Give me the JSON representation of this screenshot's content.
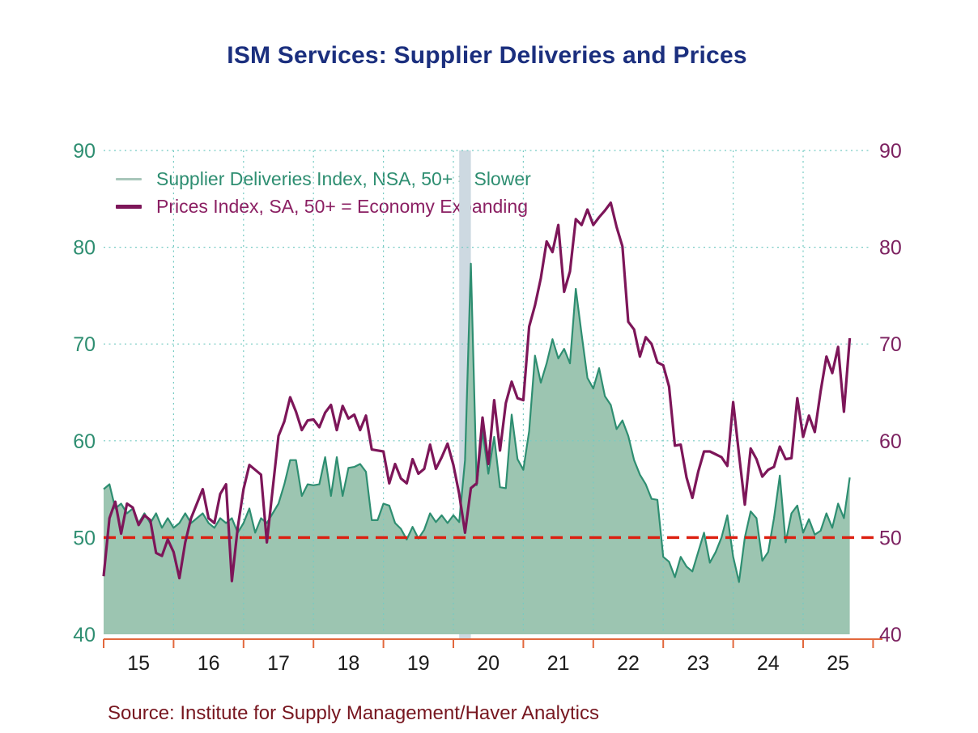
{
  "title": "ISM Services: Supplier Deliveries and Prices",
  "source": "Source:  Institute for Supply Management/Haver Analytics",
  "legend": {
    "items": [
      {
        "label": "Supplier Deliveries Index, NSA, 50+ = Slower",
        "color": "#a8c6ba",
        "text_color": "#2e8e71"
      },
      {
        "label": "Prices Index, SA, 50+ = Economy Expanding",
        "color": "#7d1659",
        "text_color": "#8b2063"
      }
    ]
  },
  "colors": {
    "title": "#1b2f7e",
    "area_fill": "#9cc5b1",
    "area_stroke": "#2e8e71",
    "prices_line": "#7d1659",
    "reference_line": "#dc1f10",
    "gridline": "#76cbc3",
    "recession_band": "#cdd9e1",
    "x_axis": "#e2683c",
    "x_tick_label": "#1c1c1c",
    "y_label_left": "#2e8e71",
    "y_label_right": "#7c2160",
    "source_text": "#77161f"
  },
  "chart_data": {
    "type": "area+line",
    "frequency": "monthly",
    "x_start": "2015-01",
    "x_end": "2025-09",
    "ylim": [
      40,
      90
    ],
    "y_ticks": [
      40,
      50,
      60,
      70,
      80,
      90
    ],
    "x_tick_labels": [
      "15",
      "16",
      "17",
      "18",
      "19",
      "20",
      "21",
      "22",
      "23",
      "24",
      "25"
    ],
    "grid": "dotted",
    "legend_position": "top-left-inside",
    "reference_line": {
      "value": 50,
      "style": "dashed",
      "color": "#dc1f10"
    },
    "recession_band": {
      "from": "2020-02",
      "to": "2020-04"
    },
    "series": [
      {
        "name": "Supplier Deliveries Index, NSA, 50+ = Slower",
        "type": "area",
        "axis": "left",
        "values": [
          55.0,
          55.5,
          53.0,
          53.5,
          52.5,
          53.0,
          51.5,
          52.5,
          51.5,
          52.5,
          51.0,
          52.0,
          51.0,
          51.5,
          52.5,
          51.5,
          52.0,
          52.5,
          51.5,
          51.0,
          52.0,
          51.5,
          52.0,
          50.5,
          51.5,
          53.0,
          50.5,
          52.0,
          51.5,
          52.5,
          53.5,
          55.5,
          58.0,
          58.0,
          54.3,
          55.5,
          55.4,
          55.5,
          58.3,
          54.3,
          58.3,
          54.3,
          57.2,
          57.3,
          57.6,
          56.8,
          51.8,
          51.8,
          53.5,
          53.3,
          51.5,
          50.9,
          49.8,
          51.1,
          49.9,
          50.8,
          52.5,
          51.6,
          52.3,
          51.5,
          52.3,
          51.6,
          58.0,
          78.3,
          55.4,
          61.0,
          56.6,
          60.4,
          55.2,
          55.1,
          62.7,
          58.1,
          57.0,
          61.0,
          68.8,
          66.0,
          68.0,
          70.5,
          68.5,
          69.5,
          68.0,
          75.7,
          71.0,
          66.5,
          65.4,
          67.5,
          64.6,
          63.7,
          61.2,
          62.1,
          60.5,
          58.0,
          56.5,
          55.5,
          54.0,
          53.9,
          48.0,
          47.5,
          45.9,
          48.0,
          47.0,
          46.5,
          48.5,
          50.5,
          47.4,
          48.5,
          50.0,
          52.3,
          48.0,
          45.4,
          50.0,
          52.7,
          52.0,
          47.6,
          48.5,
          52.0,
          56.4,
          49.5,
          52.5,
          53.3,
          50.5,
          51.9,
          50.3,
          50.7,
          52.5,
          51.0,
          53.5,
          52.0,
          56.2
        ]
      },
      {
        "name": "Prices Index, SA, 50+ = Economy Expanding",
        "type": "line",
        "axis": "right",
        "values": [
          46.0,
          52.0,
          53.7,
          50.4,
          53.5,
          53.1,
          51.3,
          52.3,
          51.8,
          48.4,
          48.1,
          49.8,
          48.5,
          45.8,
          49.5,
          52.0,
          53.5,
          55.0,
          52.0,
          51.5,
          54.5,
          55.5,
          45.5,
          51.0,
          55.0,
          57.5,
          57.0,
          56.5,
          49.5,
          55.0,
          60.5,
          62.0,
          64.5,
          63.0,
          61.1,
          62.1,
          62.2,
          61.4,
          62.9,
          63.7,
          61.1,
          63.6,
          62.3,
          62.7,
          61.1,
          62.6,
          59.1,
          59.0,
          58.9,
          55.6,
          57.6,
          56.1,
          55.6,
          58.1,
          56.6,
          57.1,
          59.6,
          57.1,
          58.3,
          59.7,
          57.5,
          54.5,
          50.5,
          55.1,
          55.6,
          62.4,
          57.6,
          64.2,
          59.0,
          63.9,
          66.1,
          64.4,
          64.2,
          71.8,
          74.0,
          76.8,
          80.6,
          79.5,
          82.3,
          75.4,
          77.5,
          82.9,
          82.3,
          83.9,
          82.3,
          83.1,
          83.8,
          84.6,
          82.1,
          80.1,
          72.3,
          71.5,
          68.7,
          70.7,
          70.0,
          68.1,
          67.8,
          65.6,
          59.5,
          59.6,
          56.2,
          54.1,
          56.8,
          58.9,
          58.9,
          58.6,
          58.3,
          57.4,
          64.0,
          58.6,
          53.4,
          59.2,
          58.1,
          56.3,
          57.0,
          57.3,
          59.4,
          58.1,
          58.2,
          64.4,
          60.4,
          62.6,
          60.9,
          65.1,
          68.7,
          67.0,
          69.7,
          63.0,
          70.6
        ]
      }
    ]
  }
}
